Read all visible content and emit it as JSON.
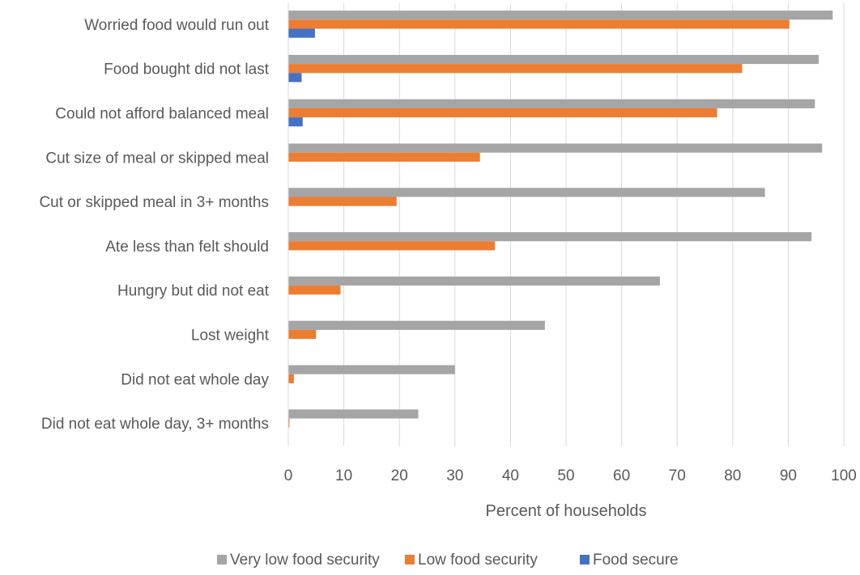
{
  "chart_data": {
    "type": "bar",
    "orientation": "horizontal",
    "title": "",
    "xlabel": "Percent of households",
    "ylabel": "",
    "xlim": [
      0,
      100
    ],
    "xticks": [
      0,
      10,
      20,
      30,
      40,
      50,
      60,
      70,
      80,
      90,
      100
    ],
    "grid": true,
    "legend_position": "bottom",
    "categories": [
      "Worried food would run out",
      "Food bought did not last",
      "Could not afford balanced meal",
      "Cut size of meal or skipped meal",
      "Cut or skipped meal in 3+ months",
      "Ate less than felt should",
      "Hungry but did not eat",
      "Lost weight",
      "Did not eat whole day",
      "Did not eat whole day, 3+ months"
    ],
    "series": [
      {
        "name": "Very low food security",
        "color": "#a5a5a5",
        "values": [
          98.0,
          95.5,
          94.8,
          96.1,
          85.8,
          94.2,
          66.9,
          46.2,
          30.0,
          23.4
        ]
      },
      {
        "name": "Low food security",
        "color": "#ed7d31",
        "values": [
          90.2,
          81.7,
          77.2,
          34.5,
          19.5,
          37.2,
          9.4,
          5.0,
          1.0,
          0.2
        ]
      },
      {
        "name": "Food secure",
        "color": "#4472c4",
        "values": [
          4.8,
          2.4,
          2.6,
          0,
          0,
          0,
          0,
          0,
          0,
          0
        ]
      }
    ]
  }
}
